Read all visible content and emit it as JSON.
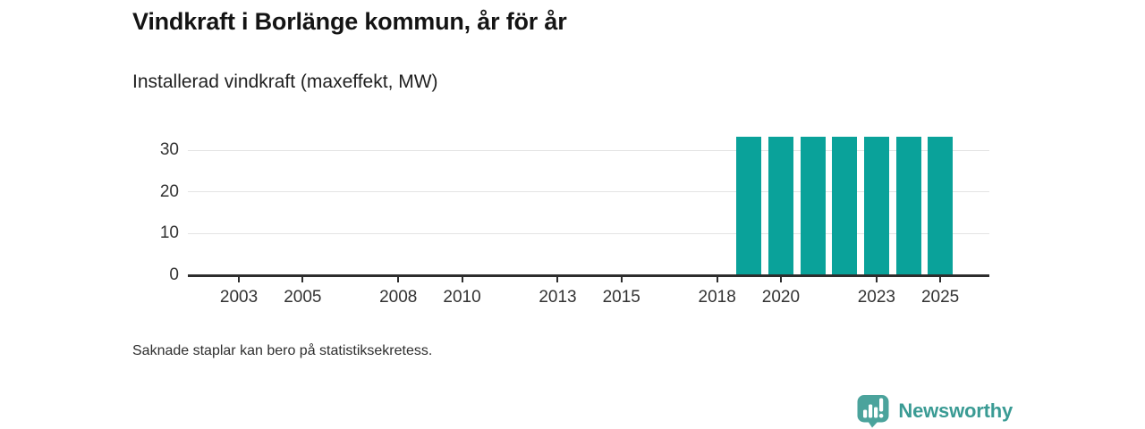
{
  "header": {
    "title": "Vindkraft i Borlänge kommun, år för år",
    "subtitle": "Installerad vindkraft (maxeffekt, MW)"
  },
  "footer": {
    "note": "Saknade staplar kan bero på statistiksekretess.",
    "brand": "Newsworthy"
  },
  "colors": {
    "bar": "#0aa29a",
    "brand": "#3a9b94",
    "brand_icon": "#4ba39c",
    "axis": "#2d2d2d",
    "grid": "#e3e3e3",
    "tick_text": "#333333"
  },
  "chart_data": {
    "type": "bar",
    "title": "Vindkraft i Borlänge kommun, år för år",
    "subtitle": "Installerad vindkraft (maxeffekt, MW)",
    "xlabel": "",
    "ylabel": "MW",
    "x": [
      2002,
      2003,
      2004,
      2005,
      2006,
      2007,
      2008,
      2009,
      2010,
      2011,
      2012,
      2013,
      2014,
      2015,
      2016,
      2017,
      2018,
      2019,
      2020,
      2021,
      2022,
      2023,
      2024,
      2025
    ],
    "values": [
      null,
      null,
      null,
      null,
      null,
      null,
      null,
      null,
      null,
      null,
      null,
      null,
      null,
      null,
      null,
      null,
      null,
      33.3,
      33.3,
      33.3,
      33.3,
      33.3,
      33.3,
      33.3
    ],
    "xticks": [
      "2003",
      "2005",
      "2008",
      "2010",
      "2013",
      "2015",
      "2018",
      "2020",
      "2023",
      "2025"
    ],
    "yticks": [
      0,
      10,
      20,
      30
    ],
    "ylim": [
      0,
      36
    ],
    "grid": "horizontal",
    "legend": "none",
    "bar_color": "#0aa29a",
    "note": "Saknade staplar kan bero på statistiksekretess."
  }
}
